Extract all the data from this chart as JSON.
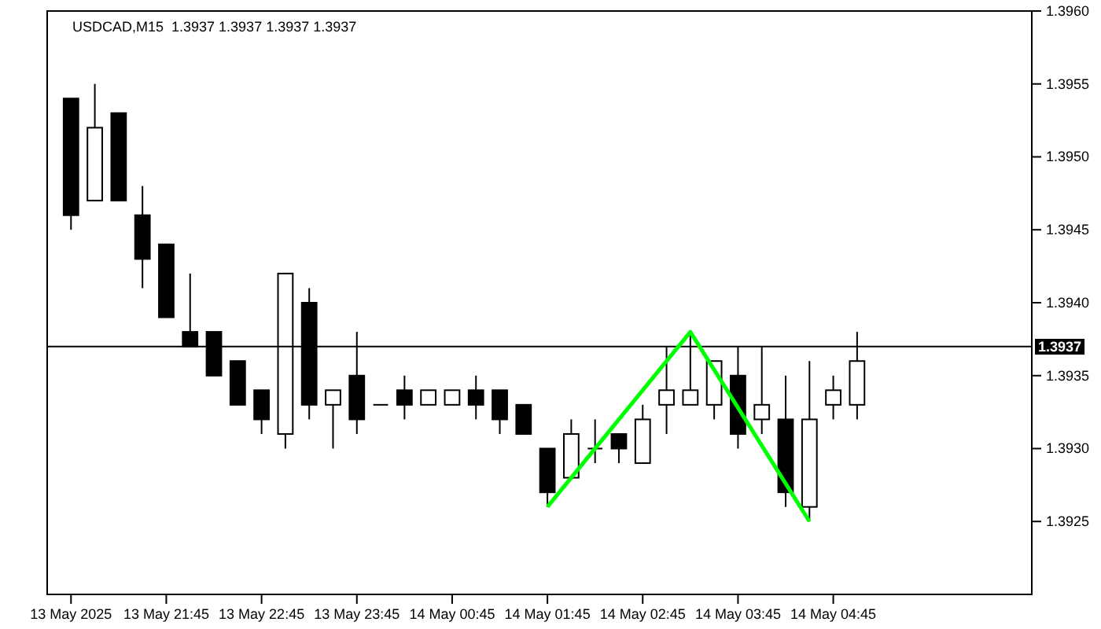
{
  "chart_data": {
    "type": "candlestick",
    "title": "USDCAD,M15  1.3937 1.3937 1.3937 1.3937",
    "x": [
      "2025-05-13T20:45",
      "2025-05-13T21:00",
      "2025-05-13T21:15",
      "2025-05-13T21:30",
      "2025-05-13T21:45",
      "2025-05-13T22:00",
      "2025-05-13T22:15",
      "2025-05-13T22:30",
      "2025-05-13T22:45",
      "2025-05-13T23:00",
      "2025-05-13T23:15",
      "2025-05-13T23:30",
      "2025-05-13T23:45",
      "2025-05-14T00:00",
      "2025-05-14T00:15",
      "2025-05-14T00:30",
      "2025-05-14T00:45",
      "2025-05-14T01:00",
      "2025-05-14T01:15",
      "2025-05-14T01:30",
      "2025-05-14T01:45",
      "2025-05-14T02:00",
      "2025-05-14T02:15",
      "2025-05-14T02:30",
      "2025-05-14T02:45",
      "2025-05-14T03:00",
      "2025-05-14T03:15",
      "2025-05-14T03:30",
      "2025-05-14T03:45",
      "2025-05-14T04:00",
      "2025-05-14T04:15",
      "2025-05-14T04:30",
      "2025-05-14T04:45",
      "2025-05-14T05:00"
    ],
    "ohlc": [
      [
        1.3954,
        1.3954,
        1.3945,
        1.3946
      ],
      [
        1.3947,
        1.3955,
        1.3947,
        1.3952
      ],
      [
        1.3953,
        1.3953,
        1.3947,
        1.3947
      ],
      [
        1.3946,
        1.3948,
        1.3941,
        1.3943
      ],
      [
        1.3944,
        1.3944,
        1.3939,
        1.3939
      ],
      [
        1.3938,
        1.3942,
        1.3937,
        1.3937
      ],
      [
        1.3938,
        1.3938,
        1.3935,
        1.3935
      ],
      [
        1.3936,
        1.3936,
        1.3933,
        1.3933
      ],
      [
        1.3934,
        1.3934,
        1.3931,
        1.3932
      ],
      [
        1.3931,
        1.3942,
        1.393,
        1.3942
      ],
      [
        1.394,
        1.3941,
        1.3932,
        1.3933
      ],
      [
        1.3933,
        1.3934,
        1.393,
        1.3934
      ],
      [
        1.3935,
        1.3938,
        1.3931,
        1.3932
      ],
      [
        1.3933,
        1.3933,
        1.3933,
        1.3933
      ],
      [
        1.3934,
        1.3935,
        1.3932,
        1.3933
      ],
      [
        1.3933,
        1.3934,
        1.3933,
        1.3934
      ],
      [
        1.3933,
        1.3934,
        1.3933,
        1.3934
      ],
      [
        1.3934,
        1.3935,
        1.3932,
        1.3933
      ],
      [
        1.3934,
        1.3934,
        1.3931,
        1.3932
      ],
      [
        1.3933,
        1.3933,
        1.3931,
        1.3931
      ],
      [
        1.393,
        1.393,
        1.3926,
        1.3927
      ],
      [
        1.3928,
        1.3932,
        1.3928,
        1.3931
      ],
      [
        1.393,
        1.3932,
        1.3929,
        1.393
      ],
      [
        1.3931,
        1.3931,
        1.3929,
        1.393
      ],
      [
        1.3929,
        1.3933,
        1.3929,
        1.3932
      ],
      [
        1.3933,
        1.3937,
        1.3931,
        1.3934
      ],
      [
        1.3933,
        1.3938,
        1.3933,
        1.3934
      ],
      [
        1.3933,
        1.3936,
        1.3932,
        1.3936
      ],
      [
        1.3935,
        1.3937,
        1.393,
        1.3931
      ],
      [
        1.3932,
        1.3937,
        1.3931,
        1.3933
      ],
      [
        1.3932,
        1.3935,
        1.3926,
        1.3927
      ],
      [
        1.3926,
        1.3936,
        1.3925,
        1.3932
      ],
      [
        1.3933,
        1.3935,
        1.3932,
        1.3934
      ],
      [
        1.3933,
        1.3938,
        1.3932,
        1.3936
      ]
    ],
    "series": [
      {
        "type": "line",
        "color": "#00ff00",
        "x": [
          "2025-05-14T01:45",
          "2025-05-14T03:15",
          "2025-05-14T04:30"
        ],
        "values": [
          1.3926,
          1.3938,
          1.3925
        ]
      }
    ],
    "xlim": [
      "2025-05-13T20:30",
      "2025-05-14T06:50"
    ],
    "xticks": [
      {
        "value": "2025-05-13T20:45",
        "label": "13 May 2025"
      },
      {
        "value": "2025-05-13T21:45",
        "label": "13 May 21:45"
      },
      {
        "value": "2025-05-13T22:45",
        "label": "13 May 22:45"
      },
      {
        "value": "2025-05-13T23:45",
        "label": "13 May 23:45"
      },
      {
        "value": "2025-05-14T00:45",
        "label": "14 May 00:45"
      },
      {
        "value": "2025-05-14T01:45",
        "label": "14 May 01:45"
      },
      {
        "value": "2025-05-14T02:45",
        "label": "14 May 02:45"
      },
      {
        "value": "2025-05-14T03:45",
        "label": "14 May 03:45"
      },
      {
        "value": "2025-05-14T04:45",
        "label": "14 May 04:45"
      }
    ],
    "ylim": [
      1.392,
      1.396
    ],
    "yticks": [
      1.3925,
      {
        "value": 1.393,
        "label": "1.3930"
      },
      1.3935,
      {
        "value": 1.394,
        "label": "1.3940"
      },
      1.3945,
      {
        "value": 1.395,
        "label": "1.3950"
      },
      1.3955,
      {
        "value": 1.396,
        "label": "1.3960"
      }
    ],
    "ref_lines": [
      {
        "axis": "y",
        "value": 1.3937,
        "label": "1.3937",
        "color": "#000000"
      }
    ]
  }
}
